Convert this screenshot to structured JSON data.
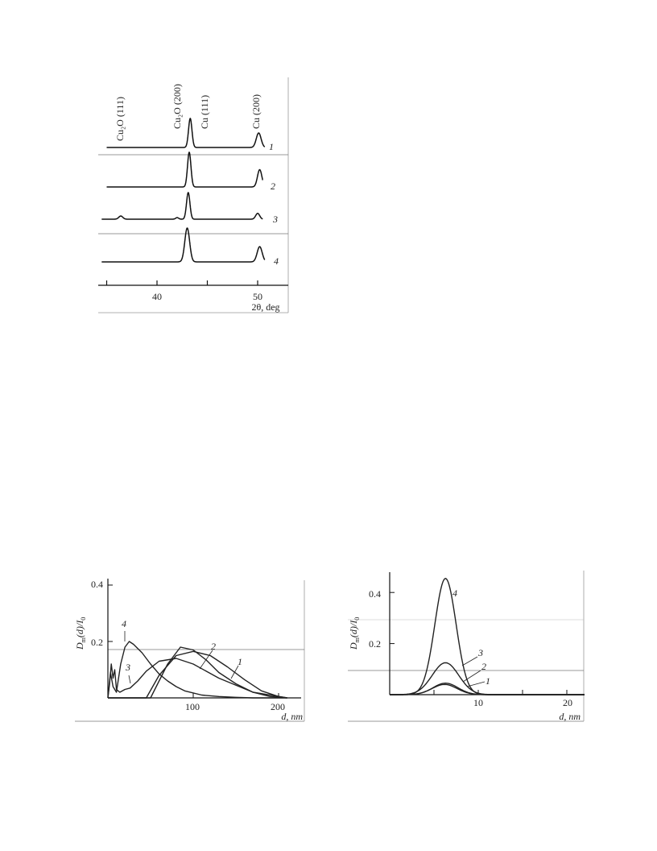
{
  "chart_data": [
    {
      "type": "line",
      "xlabel": "2θ, deg",
      "ylabel": "",
      "xlim": [
        34,
        53.5
      ],
      "xticks": [
        35,
        40,
        45,
        50
      ],
      "xticklabels": [
        "",
        "40",
        "",
        "50"
      ],
      "stacked": true,
      "peak_annotations": [
        {
          "text": "Cu₂O (111)",
          "x": 36.4
        },
        {
          "text": "Cu₂O (200)",
          "x": 42.3
        },
        {
          "text": "Cu (111)",
          "x": 43.3
        },
        {
          "text": "Cu (200)",
          "x": 50.4
        }
      ],
      "series": [
        {
          "name": "1",
          "x_range": [
            35,
            50.7
          ],
          "baseline": 0,
          "peaks": [
            {
              "x": 43.3,
              "height": 1.0,
              "width": 0.17
            },
            {
              "x": 50.1,
              "height": 0.5,
              "width": 0.24
            }
          ]
        },
        {
          "name": "2",
          "x_range": [
            35,
            50.5
          ],
          "baseline": 0,
          "peaks": [
            {
              "x": 43.2,
              "height": 1.0,
              "width": 0.17
            },
            {
              "x": 50.2,
              "height": 0.5,
              "width": 0.22
            }
          ]
        },
        {
          "name": "3",
          "x_range": [
            34.5,
            50.5
          ],
          "baseline": 0,
          "peaks": [
            {
              "x": 36.4,
              "height": 0.12,
              "width": 0.2
            },
            {
              "x": 42.0,
              "height": 0.06,
              "width": 0.15
            },
            {
              "x": 43.1,
              "height": 1.0,
              "width": 0.17
            },
            {
              "x": 50.0,
              "height": 0.22,
              "width": 0.2
            }
          ]
        },
        {
          "name": "4",
          "x_range": [
            34.5,
            50.7
          ],
          "baseline": 0,
          "peaks": [
            {
              "x": 43.0,
              "height": 1.0,
              "width": 0.24
            },
            {
              "x": 50.2,
              "height": 0.45,
              "width": 0.25
            }
          ]
        }
      ]
    },
    {
      "type": "line",
      "xlabel": "d, nm",
      "ylabel": "Dm(d)/I0",
      "xlim": [
        0,
        225
      ],
      "ylim": [
        0,
        0.42
      ],
      "xticks": [
        100,
        200
      ],
      "xticklabels": [
        "100",
        "200"
      ],
      "yticks": [
        0.2,
        0.4
      ],
      "yticklabels": [
        "0.2",
        "0.4"
      ],
      "series": [
        {
          "name": "1",
          "x": [
            0,
            40,
            45,
            60,
            80,
            100,
            120,
            140,
            160,
            180,
            200,
            210
          ],
          "y": [
            0,
            0,
            0,
            0.08,
            0.15,
            0.165,
            0.15,
            0.11,
            0.065,
            0.025,
            0.005,
            0
          ]
        },
        {
          "name": "2",
          "x": [
            0,
            48,
            50,
            60,
            70,
            85,
            100,
            115,
            130,
            150,
            170,
            190,
            210
          ],
          "y": [
            0,
            0,
            0,
            0.06,
            0.12,
            0.18,
            0.17,
            0.135,
            0.09,
            0.05,
            0.02,
            0.005,
            0
          ]
        },
        {
          "name": "3",
          "x": [
            0,
            2,
            4,
            6,
            8,
            10,
            14,
            20,
            26,
            35,
            45,
            60,
            80,
            100,
            130,
            170,
            210
          ],
          "y": [
            0,
            0.05,
            0.12,
            0.07,
            0.1,
            0.03,
            0.02,
            0.03,
            0.035,
            0.06,
            0.095,
            0.13,
            0.14,
            0.12,
            0.07,
            0.02,
            0
          ]
        },
        {
          "name": "4",
          "x": [
            0,
            3,
            6,
            10,
            15,
            20,
            25,
            30,
            40,
            50,
            60,
            70,
            80,
            90,
            110,
            130,
            150,
            170,
            190,
            210
          ],
          "y": [
            0,
            0.09,
            0.04,
            0.02,
            0.12,
            0.18,
            0.2,
            0.19,
            0.16,
            0.12,
            0.085,
            0.06,
            0.04,
            0.025,
            0.01,
            0.005,
            0.002,
            0,
            0,
            0
          ]
        }
      ]
    },
    {
      "type": "line",
      "xlabel": "d, nm",
      "ylabel": "Dm(d)/I0",
      "xlim": [
        0,
        22
      ],
      "ylim": [
        0,
        0.47
      ],
      "xticks": [
        5,
        10,
        15,
        20
      ],
      "xticklabels": [
        "",
        "10",
        "",
        "20"
      ],
      "yticks": [
        0.2,
        0.4
      ],
      "yticklabels": [
        "0.2",
        "0.4"
      ],
      "series": [
        {
          "name": "1",
          "center": 6.2,
          "sigma": 1.4,
          "peak": 0.04
        },
        {
          "name": "2",
          "center": 6.3,
          "sigma": 1.4,
          "peak": 0.045
        },
        {
          "name": "3",
          "center": 6.3,
          "sigma": 1.5,
          "peak": 0.125
        },
        {
          "name": "4",
          "center": 6.3,
          "sigma": 1.2,
          "peak": 0.455
        }
      ]
    }
  ],
  "xrd": {
    "annotations": [
      "Cu₂O (111)",
      "Cu₂O (200)",
      "Cu (111)",
      "Cu (200)"
    ],
    "series_labels": [
      "1",
      "2",
      "3",
      "4"
    ],
    "tick_labels": [
      "40",
      "50"
    ],
    "xlabel": "2θ, deg"
  },
  "psd_left": {
    "ylabel_main": "D",
    "ylabel_sub": "m",
    "ylabel_rest": "(d)/I",
    "ylabel_sub2": "0",
    "tick_labels_y": [
      "0.4",
      "0.2"
    ],
    "tick_labels_x": [
      "100",
      "200"
    ],
    "xlabel": "d, nm",
    "series_labels": [
      "4",
      "3",
      "2",
      "1"
    ]
  },
  "psd_right": {
    "ylabel_main": "D",
    "ylabel_sub": "m",
    "ylabel_rest": "(d)/I",
    "ylabel_sub2": "0",
    "tick_labels_y": [
      "0.4",
      "0.2"
    ],
    "tick_labels_x": [
      "10",
      "20"
    ],
    "xlabel": "d, nm",
    "series_labels": [
      "4",
      "3",
      "2",
      "1"
    ]
  }
}
